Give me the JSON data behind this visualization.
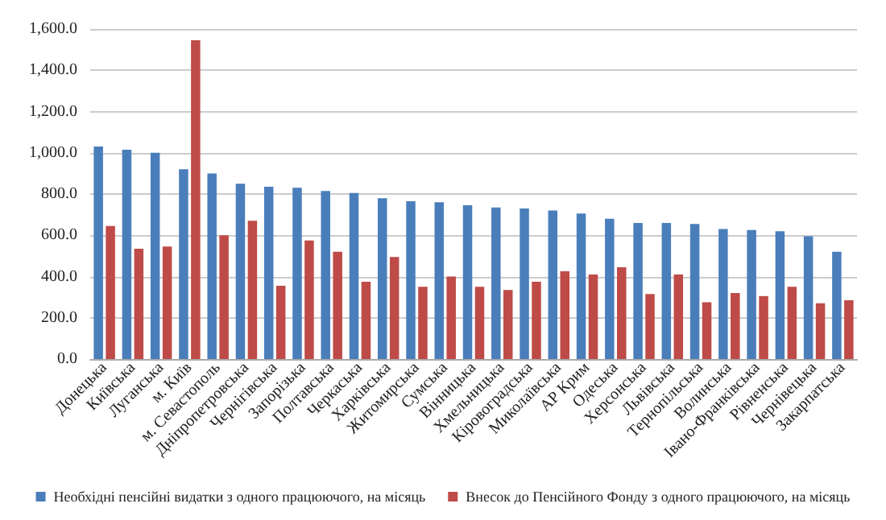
{
  "chart_data": {
    "type": "bar",
    "categories": [
      "Донецька",
      "Київська",
      "Луганська",
      "м. Київ",
      "м. Севастополь",
      "Дніпропетровська",
      "Чернігівська",
      "Запорізька",
      "Полтавська",
      "Черкаська",
      "Харківська",
      "Житомирська",
      "Сумська",
      "Вінницька",
      "Хмельницька",
      "Кіровоградська",
      "Миколаївська",
      "АР Крим",
      "Одеська",
      "Херсонська",
      "Львівська",
      "Тернопільська",
      "Волинська",
      "Івано-Франківська",
      "Рівненська",
      "Чернівецька",
      "Закарпатська"
    ],
    "series": [
      {
        "name": "Необхідні пенсійні видатки з одного працюючого, на місяць",
        "color": "#4a7ebb",
        "values": [
          1030,
          1015,
          1000,
          920,
          900,
          850,
          835,
          830,
          815,
          805,
          780,
          765,
          760,
          745,
          735,
          730,
          720,
          705,
          680,
          660,
          660,
          655,
          630,
          625,
          620,
          595,
          520
        ]
      },
      {
        "name": "Внесок до Пенсійного Фонду з одного працюючого, на місяць",
        "color": "#be4b48",
        "values": [
          645,
          535,
          545,
          1545,
          600,
          670,
          355,
          575,
          520,
          375,
          495,
          350,
          400,
          350,
          335,
          375,
          425,
          410,
          445,
          315,
          410,
          275,
          320,
          305,
          350,
          270,
          285
        ]
      }
    ],
    "ylim": [
      0,
      1600
    ],
    "yticks": [
      {
        "value": 0,
        "label": "0.0"
      },
      {
        "value": 200,
        "label": "200.0"
      },
      {
        "value": 400,
        "label": "400.0"
      },
      {
        "value": 600,
        "label": "600.0"
      },
      {
        "value": 800,
        "label": "800.0"
      },
      {
        "value": 1000,
        "label": "1,000.0"
      },
      {
        "value": 1200,
        "label": "1,200.0"
      },
      {
        "value": 1400,
        "label": "1,400.0"
      },
      {
        "value": 1600,
        "label": "1,600.0"
      }
    ],
    "grid": "y",
    "legend": "bottom"
  }
}
